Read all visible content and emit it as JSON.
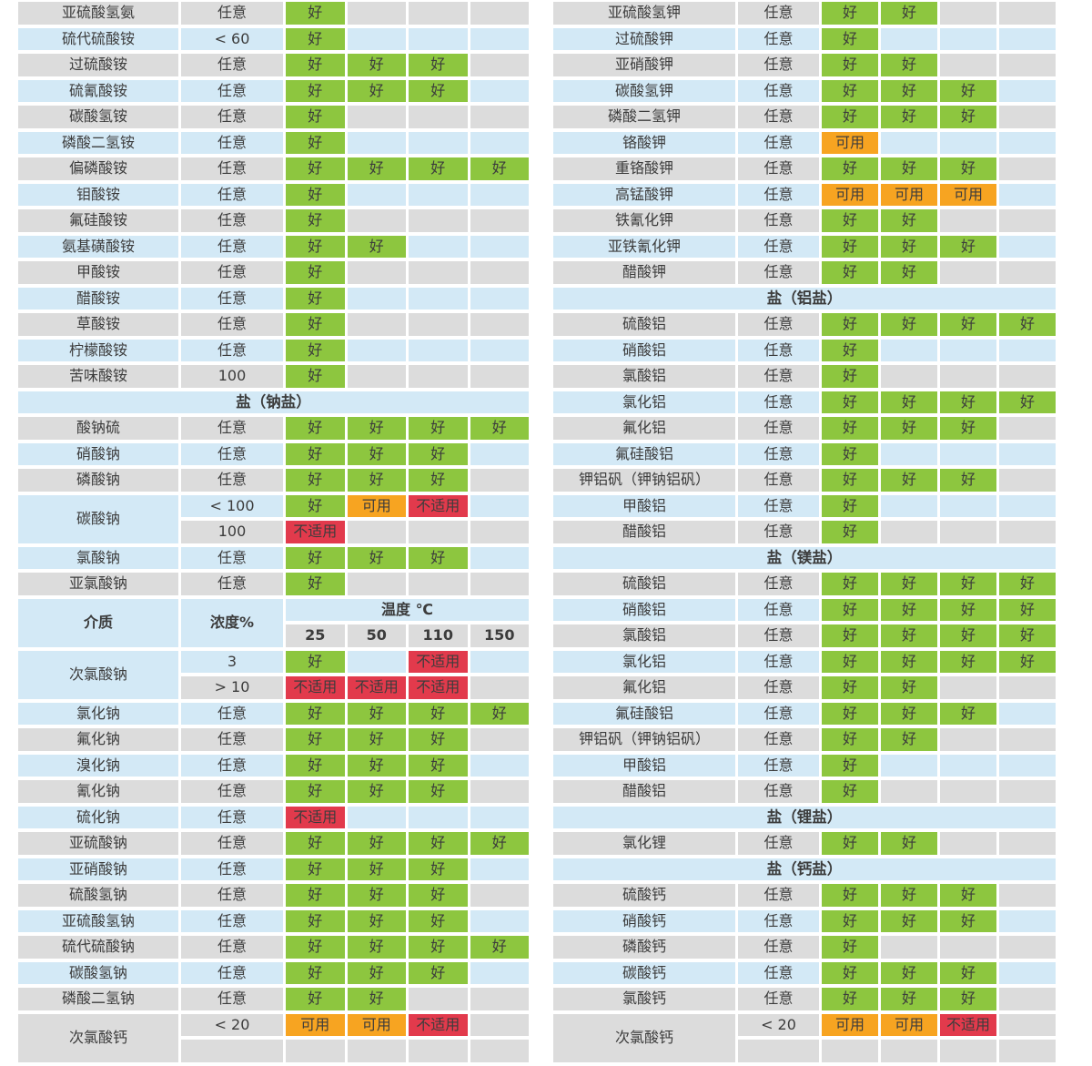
{
  "colors": {
    "good": "#8dc63f",
    "usable": "#f7a421",
    "unsuitable": "#e23a4c",
    "row_gray": "#dcdcdc",
    "row_blue": "#d3e9f6",
    "text": "#3c3c3c",
    "background": "#ffffff"
  },
  "rating_labels": {
    "good": "好",
    "usable": "可用",
    "unsuitable": "不适用"
  },
  "header": {
    "medium": "介质",
    "concentration": "浓度%",
    "temperature": "温度 ℃",
    "temps": [
      "25",
      "50",
      "110",
      "150"
    ]
  },
  "left_table": {
    "rows": [
      {
        "type": "row",
        "bg": "g",
        "name": "亚硫酸氢氨",
        "conc": "任意",
        "ratings": [
          "好",
          null,
          null,
          null
        ]
      },
      {
        "type": "row",
        "bg": "b",
        "name": "硫代硫酸铵",
        "conc": "< 60",
        "ratings": [
          "好",
          null,
          null,
          null
        ]
      },
      {
        "type": "row",
        "bg": "g",
        "name": "过硫酸铵",
        "conc": "任意",
        "ratings": [
          "好",
          "好",
          "好",
          null
        ]
      },
      {
        "type": "row",
        "bg": "b",
        "name": "硫氰酸铵",
        "conc": "任意",
        "ratings": [
          "好",
          "好",
          "好",
          null
        ]
      },
      {
        "type": "row",
        "bg": "g",
        "name": "碳酸氢铵",
        "conc": "任意",
        "ratings": [
          "好",
          null,
          null,
          null
        ]
      },
      {
        "type": "row",
        "bg": "b",
        "name": "磷酸二氢铵",
        "conc": "任意",
        "ratings": [
          "好",
          null,
          null,
          null
        ]
      },
      {
        "type": "row",
        "bg": "g",
        "name": "偏磷酸铵",
        "conc": "任意",
        "ratings": [
          "好",
          "好",
          "好",
          "好"
        ]
      },
      {
        "type": "row",
        "bg": "b",
        "name": "钼酸铵",
        "conc": "任意",
        "ratings": [
          "好",
          null,
          null,
          null
        ]
      },
      {
        "type": "row",
        "bg": "g",
        "name": "氟硅酸铵",
        "conc": "任意",
        "ratings": [
          "好",
          null,
          null,
          null
        ]
      },
      {
        "type": "row",
        "bg": "b",
        "name": "氨基磺酸铵",
        "conc": "任意",
        "ratings": [
          "好",
          "好",
          null,
          null
        ]
      },
      {
        "type": "row",
        "bg": "g",
        "name": "甲酸铵",
        "conc": "任意",
        "ratings": [
          "好",
          null,
          null,
          null
        ]
      },
      {
        "type": "row",
        "bg": "b",
        "name": "醋酸铵",
        "conc": "任意",
        "ratings": [
          "好",
          null,
          null,
          null
        ]
      },
      {
        "type": "row",
        "bg": "g",
        "name": "草酸铵",
        "conc": "任意",
        "ratings": [
          "好",
          null,
          null,
          null
        ]
      },
      {
        "type": "row",
        "bg": "b",
        "name": "柠檬酸铵",
        "conc": "任意",
        "ratings": [
          "好",
          null,
          null,
          null
        ]
      },
      {
        "type": "row",
        "bg": "g",
        "name": "苦味酸铵",
        "conc": "100",
        "ratings": [
          "好",
          null,
          null,
          null
        ]
      },
      {
        "type": "section",
        "label": "盐（钠盐）"
      },
      {
        "type": "row",
        "bg": "g",
        "name": "酸钠硫",
        "conc": "任意",
        "ratings": [
          "好",
          "好",
          "好",
          "好"
        ]
      },
      {
        "type": "row",
        "bg": "b",
        "name": "硝酸钠",
        "conc": "任意",
        "ratings": [
          "好",
          "好",
          "好",
          null
        ]
      },
      {
        "type": "row",
        "bg": "g",
        "name": "磷酸钠",
        "conc": "任意",
        "ratings": [
          "好",
          "好",
          "好",
          null
        ]
      },
      {
        "type": "merged",
        "name": "碳酸钠",
        "nameBg": "b",
        "sub": [
          {
            "bg": "b",
            "conc": "< 100",
            "ratings": [
              "好",
              "可用",
              "不适用",
              null
            ]
          },
          {
            "bg": "g",
            "conc": "100",
            "ratings": [
              "不适用",
              null,
              null,
              null
            ]
          }
        ]
      },
      {
        "type": "row",
        "bg": "b",
        "name": "氯酸钠",
        "conc": "任意",
        "ratings": [
          "好",
          "好",
          "好",
          null
        ]
      },
      {
        "type": "row",
        "bg": "g",
        "name": "亚氯酸钠",
        "conc": "任意",
        "ratings": [
          "好",
          null,
          null,
          null
        ]
      },
      {
        "type": "header"
      },
      {
        "type": "merged",
        "name": "次氯酸钠",
        "nameBg": "b",
        "sub": [
          {
            "bg": "b",
            "conc": "3",
            "ratings": [
              "好",
              null,
              "不适用",
              null
            ]
          },
          {
            "bg": "g",
            "conc": "> 10",
            "ratings": [
              "不适用",
              "不适用",
              "不适用",
              null
            ]
          }
        ]
      },
      {
        "type": "row",
        "bg": "b",
        "name": "氯化钠",
        "conc": "任意",
        "ratings": [
          "好",
          "好",
          "好",
          "好"
        ]
      },
      {
        "type": "row",
        "bg": "g",
        "name": "氟化钠",
        "conc": "任意",
        "ratings": [
          "好",
          "好",
          "好",
          null
        ]
      },
      {
        "type": "row",
        "bg": "b",
        "name": "溴化钠",
        "conc": "任意",
        "ratings": [
          "好",
          "好",
          "好",
          null
        ]
      },
      {
        "type": "row",
        "bg": "g",
        "name": "氰化钠",
        "conc": "任意",
        "ratings": [
          "好",
          "好",
          "好",
          null
        ]
      },
      {
        "type": "row",
        "bg": "b",
        "name": "硫化钠",
        "conc": "任意",
        "ratings": [
          "不适用",
          null,
          null,
          null
        ]
      },
      {
        "type": "row",
        "bg": "g",
        "name": "亚硫酸钠",
        "conc": "任意",
        "ratings": [
          "好",
          "好",
          "好",
          "好"
        ]
      },
      {
        "type": "row",
        "bg": "b",
        "name": "亚硝酸钠",
        "conc": "任意",
        "ratings": [
          "好",
          "好",
          "好",
          null
        ]
      },
      {
        "type": "row",
        "bg": "g",
        "name": "硫酸氢钠",
        "conc": "任意",
        "ratings": [
          "好",
          "好",
          "好",
          null
        ]
      },
      {
        "type": "row",
        "bg": "b",
        "name": "亚硫酸氢钠",
        "conc": "任意",
        "ratings": [
          "好",
          "好",
          "好",
          null
        ]
      },
      {
        "type": "row",
        "bg": "g",
        "name": "硫代硫酸钠",
        "conc": "任意",
        "ratings": [
          "好",
          "好",
          "好",
          "好"
        ]
      },
      {
        "type": "row",
        "bg": "b",
        "name": "碳酸氢钠",
        "conc": "任意",
        "ratings": [
          "好",
          "好",
          "好",
          null
        ]
      },
      {
        "type": "row",
        "bg": "g",
        "name": "磷酸二氢钠",
        "conc": "任意",
        "ratings": [
          "好",
          "好",
          null,
          null
        ]
      },
      {
        "type": "merged",
        "name": "次氯酸钙",
        "nameBg": "g",
        "sub": [
          {
            "bg": "g",
            "conc": "< 20",
            "ratings": [
              "可用",
              "可用",
              "不适用",
              null
            ]
          },
          {
            "bg": "g",
            "conc": "",
            "ratings": [
              null,
              null,
              null,
              null
            ]
          }
        ]
      }
    ]
  },
  "right_table": {
    "rows": [
      {
        "type": "row",
        "bg": "g",
        "name": "亚硫酸氢钾",
        "conc": "任意",
        "ratings": [
          "好",
          "好",
          null,
          null
        ]
      },
      {
        "type": "row",
        "bg": "b",
        "name": "过硫酸钾",
        "conc": "任意",
        "ratings": [
          "好",
          null,
          null,
          null
        ]
      },
      {
        "type": "row",
        "bg": "g",
        "name": "亚硝酸钾",
        "conc": "任意",
        "ratings": [
          "好",
          "好",
          null,
          null
        ]
      },
      {
        "type": "row",
        "bg": "b",
        "name": "碳酸氢钾",
        "conc": "任意",
        "ratings": [
          "好",
          "好",
          "好",
          null
        ]
      },
      {
        "type": "row",
        "bg": "g",
        "name": "磷酸二氢钾",
        "conc": "任意",
        "ratings": [
          "好",
          "好",
          "好",
          null
        ]
      },
      {
        "type": "row",
        "bg": "b",
        "name": "铬酸钾",
        "conc": "任意",
        "ratings": [
          "可用",
          null,
          null,
          null
        ]
      },
      {
        "type": "row",
        "bg": "g",
        "name": "重铬酸钾",
        "conc": "任意",
        "ratings": [
          "好",
          "好",
          "好",
          null
        ]
      },
      {
        "type": "row",
        "bg": "b",
        "name": "高锰酸钾",
        "conc": "任意",
        "ratings": [
          "可用",
          "可用",
          "可用",
          null
        ]
      },
      {
        "type": "row",
        "bg": "g",
        "name": "铁氰化钾",
        "conc": "任意",
        "ratings": [
          "好",
          "好",
          null,
          null
        ]
      },
      {
        "type": "row",
        "bg": "b",
        "name": "亚铁氰化钾",
        "conc": "任意",
        "ratings": [
          "好",
          "好",
          "好",
          null
        ]
      },
      {
        "type": "row",
        "bg": "g",
        "name": "醋酸钾",
        "conc": "任意",
        "ratings": [
          "好",
          "好",
          null,
          null
        ]
      },
      {
        "type": "section",
        "label": "盐（铝盐）"
      },
      {
        "type": "row",
        "bg": "g",
        "name": "硫酸铝",
        "conc": "任意",
        "ratings": [
          "好",
          "好",
          "好",
          "好"
        ]
      },
      {
        "type": "row",
        "bg": "b",
        "name": "硝酸铝",
        "conc": "任意",
        "ratings": [
          "好",
          null,
          null,
          null
        ]
      },
      {
        "type": "row",
        "bg": "g",
        "name": "氯酸铝",
        "conc": "任意",
        "ratings": [
          "好",
          null,
          null,
          null
        ]
      },
      {
        "type": "row",
        "bg": "b",
        "name": "氯化铝",
        "conc": "任意",
        "ratings": [
          "好",
          "好",
          "好",
          "好"
        ]
      },
      {
        "type": "row",
        "bg": "g",
        "name": "氟化铝",
        "conc": "任意",
        "ratings": [
          "好",
          "好",
          "好",
          null
        ]
      },
      {
        "type": "row",
        "bg": "b",
        "name": "氟硅酸铝",
        "conc": "任意",
        "ratings": [
          "好",
          null,
          null,
          null
        ]
      },
      {
        "type": "row",
        "bg": "g",
        "name": "钾铝矾（钾钠铝矾）",
        "conc": "任意",
        "ratings": [
          "好",
          "好",
          "好",
          null
        ]
      },
      {
        "type": "row",
        "bg": "b",
        "name": "甲酸铝",
        "conc": "任意",
        "ratings": [
          "好",
          null,
          null,
          null
        ]
      },
      {
        "type": "row",
        "bg": "g",
        "name": "醋酸铝",
        "conc": "任意",
        "ratings": [
          "好",
          null,
          null,
          null
        ]
      },
      {
        "type": "section",
        "label": "盐（镁盐）"
      },
      {
        "type": "row",
        "bg": "g",
        "name": "硫酸铝",
        "conc": "任意",
        "ratings": [
          "好",
          "好",
          "好",
          "好"
        ]
      },
      {
        "type": "row",
        "bg": "b",
        "name": "硝酸铝",
        "conc": "任意",
        "ratings": [
          "好",
          "好",
          "好",
          "好"
        ]
      },
      {
        "type": "row",
        "bg": "g",
        "name": "氯酸铝",
        "conc": "任意",
        "ratings": [
          "好",
          "好",
          "好",
          "好"
        ]
      },
      {
        "type": "row",
        "bg": "b",
        "name": "氯化铝",
        "conc": "任意",
        "ratings": [
          "好",
          "好",
          "好",
          "好"
        ]
      },
      {
        "type": "row",
        "bg": "g",
        "name": "氟化铝",
        "conc": "任意",
        "ratings": [
          "好",
          "好",
          null,
          null
        ]
      },
      {
        "type": "row",
        "bg": "b",
        "name": "氟硅酸铝",
        "conc": "任意",
        "ratings": [
          "好",
          "好",
          "好",
          null
        ]
      },
      {
        "type": "row",
        "bg": "g",
        "name": "钾铝矾（钾钠铝矾）",
        "conc": "任意",
        "ratings": [
          "好",
          "好",
          null,
          null
        ]
      },
      {
        "type": "row",
        "bg": "b",
        "name": "甲酸铝",
        "conc": "任意",
        "ratings": [
          "好",
          null,
          null,
          null
        ]
      },
      {
        "type": "row",
        "bg": "g",
        "name": "醋酸铝",
        "conc": "任意",
        "ratings": [
          "好",
          null,
          null,
          null
        ]
      },
      {
        "type": "section",
        "label": "盐（锂盐）"
      },
      {
        "type": "row",
        "bg": "g",
        "name": "氯化锂",
        "conc": "任意",
        "ratings": [
          "好",
          "好",
          null,
          null
        ]
      },
      {
        "type": "section",
        "label": "盐（钙盐）"
      },
      {
        "type": "row",
        "bg": "g",
        "name": "硫酸钙",
        "conc": "任意",
        "ratings": [
          "好",
          "好",
          "好",
          null
        ]
      },
      {
        "type": "row",
        "bg": "b",
        "name": "硝酸钙",
        "conc": "任意",
        "ratings": [
          "好",
          "好",
          "好",
          null
        ]
      },
      {
        "type": "row",
        "bg": "g",
        "name": "磷酸钙",
        "conc": "任意",
        "ratings": [
          "好",
          null,
          null,
          null
        ]
      },
      {
        "type": "row",
        "bg": "b",
        "name": "碳酸钙",
        "conc": "任意",
        "ratings": [
          "好",
          "好",
          "好",
          null
        ]
      },
      {
        "type": "row",
        "bg": "g",
        "name": "氯酸钙",
        "conc": "任意",
        "ratings": [
          "好",
          "好",
          "好",
          null
        ]
      },
      {
        "type": "merged",
        "name": "次氯酸钙",
        "nameBg": "g",
        "sub": [
          {
            "bg": "g",
            "conc": "< 20",
            "ratings": [
              "可用",
              "可用",
              "不适用",
              null
            ]
          },
          {
            "bg": "g",
            "conc": "",
            "ratings": [
              null,
              null,
              null,
              null
            ]
          }
        ]
      }
    ]
  }
}
